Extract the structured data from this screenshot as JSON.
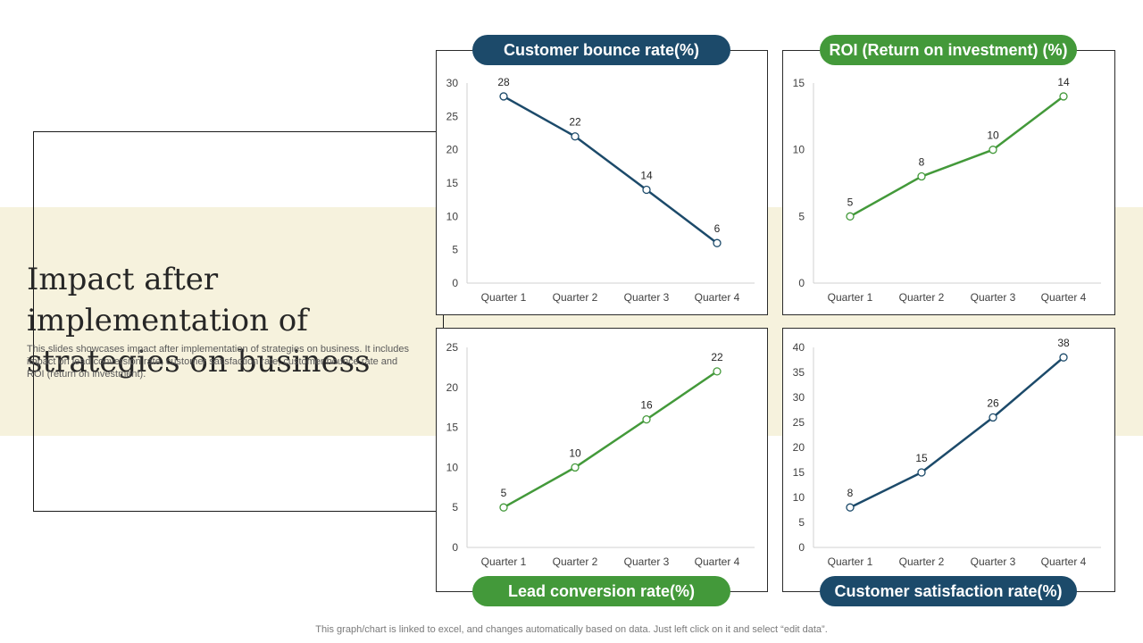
{
  "page": {
    "title": "Impact after implementation of strategies on business",
    "subtitle": "This slides showcases impact after implementation of strategies on business. It includes impact on lead conversion rate, customer satisfaction rate, customer bounce rate and ROI (return on investment).",
    "footer": "This graph/chart is linked to excel,  and changes automatically based on data. Just left click on it and select “edit data”."
  },
  "colors": {
    "blue": "#1c4a6a",
    "green": "#43993a",
    "band": "#f6f2dd"
  },
  "chart_data": [
    {
      "type": "line",
      "title": "Customer bounce rate(%)",
      "color": "blue",
      "categories": [
        "Quarter 1",
        "Quarter 2",
        "Quarter 3",
        "Quarter 4"
      ],
      "values": [
        28,
        22,
        14,
        6
      ],
      "ylim": [
        0,
        30
      ],
      "yticks": [
        0,
        5,
        10,
        15,
        20,
        25,
        30
      ],
      "xlabel": "",
      "ylabel": "",
      "grid": false
    },
    {
      "type": "line",
      "title": "ROI (Return on investment) (%)",
      "color": "green",
      "categories": [
        "Quarter 1",
        "Quarter 2",
        "Quarter 3",
        "Quarter 4"
      ],
      "values": [
        5,
        8,
        10,
        14
      ],
      "ylim": [
        0,
        15
      ],
      "yticks": [
        0,
        5,
        10,
        15
      ],
      "xlabel": "",
      "ylabel": "",
      "grid": false
    },
    {
      "type": "line",
      "title": "Lead conversion rate(%)",
      "color": "green",
      "categories": [
        "Quarter 1",
        "Quarter 2",
        "Quarter 3",
        "Quarter 4"
      ],
      "values": [
        5,
        10,
        16,
        22
      ],
      "ylim": [
        0,
        25
      ],
      "yticks": [
        0,
        5,
        10,
        15,
        20,
        25
      ],
      "xlabel": "",
      "ylabel": "",
      "grid": false
    },
    {
      "type": "line",
      "title": "Customer satisfaction rate(%)",
      "color": "blue",
      "categories": [
        "Quarter 1",
        "Quarter 2",
        "Quarter 3",
        "Quarter 4"
      ],
      "values": [
        8,
        15,
        26,
        38
      ],
      "ylim": [
        0,
        40
      ],
      "yticks": [
        0,
        5,
        10,
        15,
        20,
        25,
        30,
        35,
        40
      ],
      "xlabel": "",
      "ylabel": "",
      "grid": false
    }
  ]
}
